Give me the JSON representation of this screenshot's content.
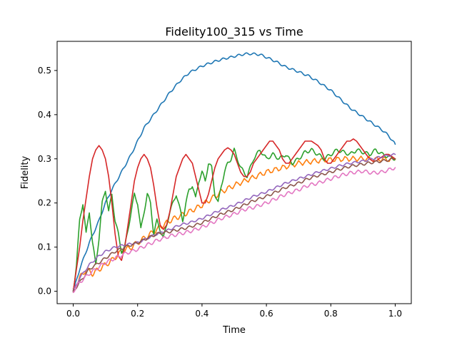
{
  "chart_data": {
    "type": "line",
    "title": "Fidelity100_315  vs Time",
    "xlabel": "Time",
    "ylabel": "Fidelity",
    "xlim": [
      -0.05,
      1.05
    ],
    "ylim": [
      -0.028,
      0.566
    ],
    "xticks": [
      0.0,
      0.2,
      0.4,
      0.6,
      0.8,
      1.0
    ],
    "xtick_labels": [
      "0.0",
      "0.2",
      "0.4",
      "0.6",
      "0.8",
      "1.0"
    ],
    "yticks": [
      0.0,
      0.1,
      0.2,
      0.3,
      0.4,
      0.5
    ],
    "ytick_labels": [
      "0.0",
      "0.1",
      "0.2",
      "0.3",
      "0.4",
      "0.5"
    ],
    "grid": false,
    "legend": "none",
    "series": [
      {
        "color": "#1f77b4",
        "x": [
          0.0,
          0.02,
          0.05,
          0.08,
          0.1,
          0.12,
          0.15,
          0.18,
          0.2,
          0.22,
          0.25,
          0.28,
          0.3,
          0.33,
          0.36,
          0.4,
          0.43,
          0.46,
          0.5,
          0.53,
          0.55,
          0.58,
          0.6,
          0.63,
          0.66,
          0.7,
          0.73,
          0.76,
          0.8,
          0.83,
          0.86,
          0.9,
          0.93,
          0.96,
          0.98,
          1.0
        ],
        "y": [
          0.0,
          0.05,
          0.11,
          0.16,
          0.2,
          0.23,
          0.27,
          0.31,
          0.34,
          0.37,
          0.4,
          0.43,
          0.45,
          0.475,
          0.495,
          0.51,
          0.518,
          0.525,
          0.532,
          0.537,
          0.538,
          0.536,
          0.53,
          0.52,
          0.508,
          0.497,
          0.488,
          0.475,
          0.455,
          0.435,
          0.415,
          0.395,
          0.38,
          0.365,
          0.352,
          0.333
        ],
        "ripple": 0.0025
      },
      {
        "color": "#ff7f0e",
        "x": [
          0.0,
          0.02,
          0.04,
          0.06,
          0.08,
          0.1,
          0.12,
          0.15,
          0.18,
          0.2,
          0.23,
          0.26,
          0.3,
          0.33,
          0.36,
          0.4,
          0.43,
          0.46,
          0.5,
          0.55,
          0.6,
          0.65,
          0.7,
          0.75,
          0.8,
          0.85,
          0.9,
          0.95,
          1.0
        ],
        "y": [
          0.0,
          0.03,
          0.05,
          0.04,
          0.05,
          0.06,
          0.07,
          0.09,
          0.1,
          0.11,
          0.125,
          0.14,
          0.16,
          0.17,
          0.18,
          0.195,
          0.21,
          0.225,
          0.24,
          0.255,
          0.27,
          0.28,
          0.29,
          0.295,
          0.298,
          0.3,
          0.3,
          0.299,
          0.298
        ],
        "ripple": 0.006
      },
      {
        "color": "#2ca02c",
        "x": [
          0.0,
          0.01,
          0.02,
          0.03,
          0.04,
          0.05,
          0.06,
          0.07,
          0.08,
          0.09,
          0.1,
          0.11,
          0.12,
          0.13,
          0.14,
          0.15,
          0.16,
          0.17,
          0.18,
          0.19,
          0.2,
          0.21,
          0.22,
          0.23,
          0.24,
          0.25,
          0.26,
          0.27,
          0.28,
          0.29,
          0.3,
          0.31,
          0.32,
          0.33,
          0.34,
          0.35,
          0.36,
          0.37,
          0.38,
          0.39,
          0.4,
          0.41,
          0.42,
          0.43,
          0.44,
          0.45,
          0.46,
          0.47,
          0.48,
          0.49,
          0.5,
          0.52,
          0.54,
          0.56,
          0.58,
          0.6,
          0.62,
          0.64,
          0.66,
          0.68,
          0.7,
          0.72,
          0.74,
          0.76,
          0.78,
          0.8,
          0.82,
          0.84,
          0.86,
          0.88,
          0.9,
          0.92,
          0.94,
          0.96,
          0.98,
          1.0
        ],
        "y": [
          0.0,
          0.06,
          0.16,
          0.2,
          0.13,
          0.18,
          0.11,
          0.06,
          0.12,
          0.2,
          0.23,
          0.18,
          0.22,
          0.16,
          0.13,
          0.09,
          0.1,
          0.14,
          0.18,
          0.22,
          0.2,
          0.14,
          0.18,
          0.22,
          0.2,
          0.13,
          0.16,
          0.14,
          0.12,
          0.15,
          0.18,
          0.2,
          0.22,
          0.19,
          0.16,
          0.2,
          0.23,
          0.24,
          0.21,
          0.25,
          0.27,
          0.25,
          0.29,
          0.28,
          0.22,
          0.2,
          0.24,
          0.27,
          0.29,
          0.3,
          0.32,
          0.28,
          0.26,
          0.3,
          0.32,
          0.3,
          0.31,
          0.3,
          0.31,
          0.29,
          0.3,
          0.315,
          0.32,
          0.31,
          0.3,
          0.31,
          0.32,
          0.315,
          0.31,
          0.32,
          0.315,
          0.31,
          0.32,
          0.31,
          0.305,
          0.3
        ],
        "ripple": 0.004
      },
      {
        "color": "#d62728",
        "x": [
          0.0,
          0.01,
          0.02,
          0.03,
          0.04,
          0.05,
          0.06,
          0.07,
          0.08,
          0.09,
          0.1,
          0.11,
          0.12,
          0.13,
          0.14,
          0.15,
          0.16,
          0.17,
          0.18,
          0.19,
          0.2,
          0.21,
          0.22,
          0.23,
          0.24,
          0.25,
          0.26,
          0.27,
          0.28,
          0.29,
          0.3,
          0.31,
          0.32,
          0.33,
          0.34,
          0.35,
          0.36,
          0.37,
          0.38,
          0.39,
          0.4,
          0.41,
          0.42,
          0.43,
          0.44,
          0.45,
          0.46,
          0.47,
          0.48,
          0.49,
          0.5,
          0.51,
          0.52,
          0.53,
          0.54,
          0.55,
          0.56,
          0.57,
          0.58,
          0.59,
          0.6,
          0.61,
          0.62,
          0.63,
          0.64,
          0.65,
          0.66,
          0.67,
          0.68,
          0.69,
          0.7,
          0.71,
          0.72,
          0.73,
          0.74,
          0.75,
          0.76,
          0.77,
          0.78,
          0.79,
          0.8,
          0.81,
          0.82,
          0.83,
          0.84,
          0.85,
          0.86,
          0.87,
          0.88,
          0.89,
          0.9,
          0.91,
          0.92,
          0.93,
          0.94,
          0.95,
          0.96,
          0.97,
          0.98,
          0.99,
          1.0
        ],
        "y": [
          0.0,
          0.05,
          0.1,
          0.16,
          0.21,
          0.26,
          0.3,
          0.32,
          0.33,
          0.32,
          0.3,
          0.26,
          0.2,
          0.13,
          0.08,
          0.07,
          0.1,
          0.15,
          0.2,
          0.25,
          0.28,
          0.3,
          0.31,
          0.3,
          0.28,
          0.24,
          0.19,
          0.15,
          0.14,
          0.15,
          0.18,
          0.22,
          0.26,
          0.28,
          0.3,
          0.31,
          0.3,
          0.29,
          0.26,
          0.23,
          0.2,
          0.2,
          0.22,
          0.25,
          0.28,
          0.3,
          0.31,
          0.32,
          0.325,
          0.32,
          0.31,
          0.29,
          0.27,
          0.26,
          0.26,
          0.27,
          0.29,
          0.3,
          0.31,
          0.32,
          0.33,
          0.34,
          0.34,
          0.33,
          0.32,
          0.3,
          0.29,
          0.29,
          0.3,
          0.31,
          0.32,
          0.33,
          0.34,
          0.34,
          0.34,
          0.335,
          0.33,
          0.32,
          0.3,
          0.29,
          0.29,
          0.3,
          0.31,
          0.32,
          0.33,
          0.34,
          0.34,
          0.345,
          0.34,
          0.33,
          0.32,
          0.31,
          0.3,
          0.295,
          0.295,
          0.3,
          0.305,
          0.31,
          0.31,
          0.305,
          0.3
        ]
      },
      {
        "color": "#9467bd",
        "x": [
          0.0,
          0.02,
          0.05,
          0.08,
          0.1,
          0.13,
          0.16,
          0.2,
          0.23,
          0.26,
          0.3,
          0.33,
          0.36,
          0.4,
          0.43,
          0.46,
          0.5,
          0.53,
          0.56,
          0.6,
          0.63,
          0.66,
          0.7,
          0.73,
          0.76,
          0.8,
          0.83,
          0.86,
          0.9,
          0.93,
          0.96,
          1.0
        ],
        "y": [
          0.0,
          0.03,
          0.06,
          0.08,
          0.09,
          0.1,
          0.105,
          0.11,
          0.12,
          0.13,
          0.14,
          0.15,
          0.155,
          0.165,
          0.175,
          0.185,
          0.195,
          0.205,
          0.215,
          0.225,
          0.235,
          0.245,
          0.255,
          0.262,
          0.27,
          0.278,
          0.285,
          0.29,
          0.295,
          0.3,
          0.305,
          0.31
        ],
        "ripple": 0.0025
      },
      {
        "color": "#8c564b",
        "x": [
          0.0,
          0.02,
          0.05,
          0.08,
          0.1,
          0.13,
          0.16,
          0.2,
          0.23,
          0.26,
          0.3,
          0.33,
          0.36,
          0.4,
          0.43,
          0.46,
          0.5,
          0.53,
          0.56,
          0.6,
          0.63,
          0.66,
          0.7,
          0.73,
          0.76,
          0.8,
          0.83,
          0.86,
          0.9,
          0.93,
          0.96,
          1.0
        ],
        "y": [
          0.0,
          0.02,
          0.05,
          0.065,
          0.075,
          0.09,
          0.1,
          0.11,
          0.12,
          0.13,
          0.135,
          0.14,
          0.145,
          0.155,
          0.165,
          0.175,
          0.185,
          0.195,
          0.205,
          0.215,
          0.225,
          0.235,
          0.245,
          0.255,
          0.262,
          0.27,
          0.277,
          0.283,
          0.288,
          0.292,
          0.295,
          0.3
        ],
        "ripple": 0.003
      },
      {
        "color": "#e377c2",
        "x": [
          0.0,
          0.02,
          0.05,
          0.08,
          0.1,
          0.13,
          0.16,
          0.2,
          0.23,
          0.26,
          0.3,
          0.33,
          0.36,
          0.4,
          0.43,
          0.46,
          0.5,
          0.53,
          0.56,
          0.6,
          0.63,
          0.66,
          0.7,
          0.73,
          0.76,
          0.8,
          0.83,
          0.86,
          0.9,
          0.93,
          0.96,
          1.0
        ],
        "y": [
          0.0,
          0.02,
          0.04,
          0.055,
          0.065,
          0.075,
          0.085,
          0.095,
          0.105,
          0.115,
          0.125,
          0.13,
          0.135,
          0.145,
          0.155,
          0.165,
          0.175,
          0.185,
          0.19,
          0.2,
          0.21,
          0.22,
          0.23,
          0.24,
          0.245,
          0.255,
          0.262,
          0.268,
          0.272,
          0.268,
          0.27,
          0.28
        ],
        "ripple": 0.004
      }
    ]
  }
}
